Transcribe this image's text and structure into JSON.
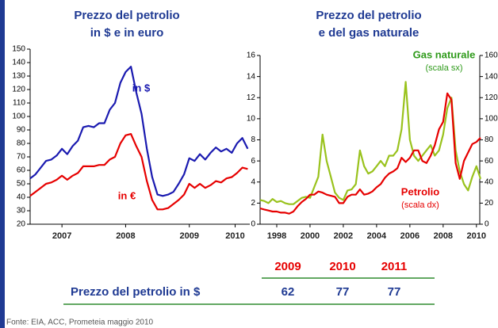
{
  "chart_data": [
    {
      "type": "line",
      "title": [
        "Prezzo del petrolio",
        "in $ e in euro"
      ],
      "x": [
        2007,
        2007.083,
        2007.167,
        2007.25,
        2007.333,
        2007.417,
        2007.5,
        2007.583,
        2007.667,
        2007.75,
        2007.833,
        2007.917,
        2008,
        2008.083,
        2008.167,
        2008.25,
        2008.333,
        2008.417,
        2008.5,
        2008.583,
        2008.667,
        2008.75,
        2008.833,
        2008.917,
        2009,
        2009.083,
        2009.167,
        2009.25,
        2009.333,
        2009.417,
        2009.5,
        2009.583,
        2009.667,
        2009.75,
        2009.833,
        2009.917,
        2010,
        2010.083,
        2010.167,
        2010.25,
        2010.333,
        2010.417
      ],
      "series": [
        {
          "name": "in $",
          "color": "#1a1ab0",
          "values": [
            54,
            57,
            62,
            67,
            68,
            71,
            76,
            72,
            78,
            82,
            92,
            93,
            92,
            95,
            95,
            105,
            110,
            125,
            133,
            137,
            118,
            102,
            76,
            55,
            42,
            41,
            42,
            44,
            50,
            57,
            69,
            67,
            72,
            68,
            73,
            77,
            74,
            76,
            73,
            80,
            84,
            76
          ]
        },
        {
          "name": "in €",
          "color": "#e60000",
          "values": [
            41,
            44,
            47,
            50,
            51,
            53,
            56,
            53,
            56,
            58,
            63,
            63,
            63,
            64,
            64,
            68,
            70,
            80,
            86,
            87,
            78,
            70,
            52,
            38,
            31,
            31,
            32,
            35,
            38,
            42,
            50,
            47,
            50,
            47,
            49,
            52,
            51,
            54,
            55,
            58,
            62,
            61
          ]
        }
      ],
      "xlim": [
        2007,
        2010.45
      ],
      "xticks": [
        {
          "value": 2007.5,
          "label": "2007"
        },
        {
          "value": 2008.5,
          "label": "2008"
        },
        {
          "value": 2009.5,
          "label": "2009"
        },
        {
          "value": 2010.22,
          "label": "2010"
        }
      ],
      "ylim": [
        20,
        150
      ],
      "yticks": [
        20,
        30,
        40,
        50,
        60,
        70,
        80,
        90,
        100,
        110,
        120,
        130,
        140,
        150
      ]
    },
    {
      "type": "line",
      "title": [
        "Prezzo del petrolio",
        "e del gas naturale"
      ],
      "x": [
        1997,
        1997.25,
        1997.5,
        1997.75,
        1998,
        1998.25,
        1998.5,
        1998.75,
        1999,
        1999.25,
        1999.5,
        1999.75,
        2000,
        2000.25,
        2000.5,
        2000.75,
        2001,
        2001.25,
        2001.5,
        2001.75,
        2002,
        2002.25,
        2002.5,
        2002.75,
        2003,
        2003.25,
        2003.5,
        2003.75,
        2004,
        2004.25,
        2004.5,
        2004.75,
        2005,
        2005.25,
        2005.5,
        2005.75,
        2006,
        2006.25,
        2006.5,
        2006.75,
        2007,
        2007.25,
        2007.5,
        2007.75,
        2008,
        2008.25,
        2008.5,
        2008.75,
        2009,
        2009.25,
        2009.5,
        2009.75,
        2010,
        2010.25
      ],
      "series": [
        {
          "name": "Gas naturale",
          "note": "(scala sx)",
          "color": "#99c21c",
          "label_color": "#2e9a1a",
          "values": [
            2.3,
            2.2,
            2.0,
            2.4,
            2.1,
            2.2,
            2.0,
            1.9,
            1.9,
            2.2,
            2.5,
            2.6,
            2.5,
            3.5,
            4.5,
            8.5,
            6.0,
            4.5,
            3.0,
            2.5,
            2.3,
            3.2,
            3.3,
            3.8,
            7.0,
            5.5,
            4.8,
            5.0,
            5.5,
            6.0,
            5.5,
            6.5,
            6.5,
            7.0,
            9.0,
            13.5,
            8.0,
            6.5,
            6.0,
            6.5,
            7.0,
            7.5,
            6.5,
            7.0,
            8.5,
            11.0,
            12.0,
            7.0,
            5.0,
            3.8,
            3.2,
            4.5,
            5.5,
            4.3
          ]
        },
        {
          "name": "Petrolio",
          "note": "(scala dx)",
          "color": "#e60000",
          "label_color": "#e60000",
          "axis": "y2",
          "values": [
            15,
            14,
            13,
            12,
            12,
            11,
            11,
            10,
            12,
            17,
            21,
            24,
            28,
            28,
            31,
            30,
            28,
            27,
            26,
            20,
            20,
            26,
            28,
            28,
            33,
            28,
            29,
            31,
            35,
            38,
            44,
            48,
            50,
            53,
            63,
            59,
            63,
            70,
            70,
            60,
            58,
            65,
            75,
            90,
            97,
            124,
            118,
            58,
            43,
            60,
            68,
            76,
            78,
            82
          ]
        }
      ],
      "xlim": [
        1997,
        2010.2
      ],
      "xticks": [
        1998,
        2000,
        2002,
        2004,
        2006,
        2008,
        2010
      ],
      "ylim": [
        0,
        16
      ],
      "yticks": [
        0,
        2,
        4,
        6,
        8,
        10,
        12,
        14,
        16
      ],
      "y2lim": [
        0,
        160
      ],
      "y2ticks": [
        0,
        20,
        40,
        60,
        80,
        100,
        120,
        140,
        160
      ]
    }
  ],
  "table": {
    "columns": [
      "2009",
      "2010",
      "2011"
    ],
    "rows": [
      {
        "label": "Prezzo del petrolio in $",
        "values": [
          "62",
          "77",
          "77"
        ]
      }
    ]
  },
  "source": "Fonte: EIA, ACC, Prometeia maggio 2010"
}
